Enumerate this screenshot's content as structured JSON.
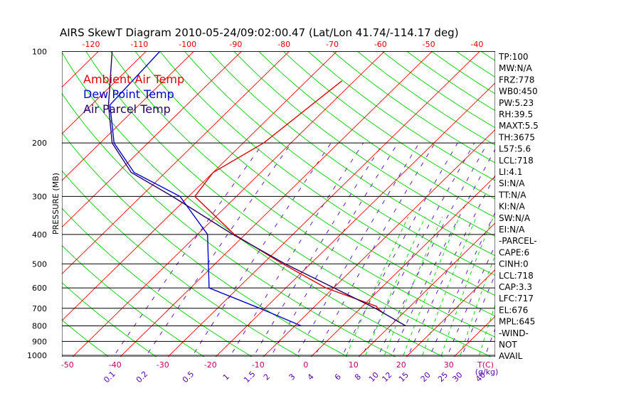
{
  "title": "AIRS SkewT Diagram 2010-05-24/09:02:00.47 (Lat/Lon 41.74/-114.17 deg)",
  "colors": {
    "ambient": "#dd0000",
    "dewpoint": "#0000cc",
    "parcel": "#220066",
    "isotherm": "#ff0000",
    "dry_adiabat": "#00cc00",
    "mixing_ratio": "#5500aa",
    "bottom_axis": "#c00060",
    "top_axis": "#dd0000"
  },
  "legend": [
    "Ambient Air Temp",
    "Dew Point Temp",
    "Air Parcel Temp"
  ],
  "indices": [
    "TP:100",
    "MW:N/A",
    "FRZ:778",
    "WB0:450",
    "PW:5.23",
    "RH:39.5",
    "MAXT:5.5",
    "TH:3675",
    "L57:5.6",
    "LCL:718",
    "LI:4.1",
    "SI:N/A",
    "TT:N/A",
    "KI:N/A",
    "SW:N/A",
    "EI:N/A",
    "-PARCEL-",
    "CAPE:6",
    "CINH:0",
    "LCL:718",
    "CAP:3.3",
    "LFC:717",
    "EL:676",
    "MPL:645",
    "-WIND-",
    "NOT",
    "AVAIL"
  ],
  "chart_data": {
    "type": "line",
    "title": "AIRS SkewT Diagram 2010-05-24/09:02:00.47 (Lat/Lon 41.74/-114.17 deg)",
    "ylabel": "PRESSURE (MB)",
    "xlabel": "T(C)",
    "y_scale": "log",
    "y_ticks": [
      100,
      200,
      300,
      400,
      500,
      600,
      700,
      800,
      900,
      1000
    ],
    "x_ticks_bottom": [
      -50,
      -40,
      -30,
      -20,
      -10,
      0,
      10,
      20,
      30
    ],
    "x_ticks_top": [
      -120,
      -110,
      -100,
      -90,
      -80,
      -70,
      -60,
      -50,
      -40
    ],
    "mixing_ratio_labels": [
      "0.1",
      "0.2",
      "0.5",
      "1",
      "1.5",
      "2",
      "3",
      "4",
      "6",
      "8",
      "10",
      "12",
      "15",
      "20",
      "25",
      "30",
      "40"
    ],
    "mixing_ratio_unit": "(g/kg)",
    "series": [
      {
        "name": "Ambient Air Temp",
        "points": [
          [
            125,
            -52.6
          ],
          [
            200,
            -55.7
          ],
          [
            250,
            -60
          ],
          [
            300,
            -58.7
          ],
          [
            400,
            -42.3
          ],
          [
            500,
            -25.8
          ],
          [
            600,
            -11.6
          ],
          [
            690,
            3
          ],
          [
            700,
            3.6
          ],
          [
            720,
            5.3
          ]
        ]
      },
      {
        "name": "Dew Point Temp",
        "points": [
          [
            100,
            -97.1
          ],
          [
            150,
            -96.1
          ],
          [
            200,
            -87.1
          ],
          [
            250,
            -76.6
          ],
          [
            300,
            -61.8
          ],
          [
            400,
            -47.9
          ],
          [
            600,
            -36.1
          ],
          [
            700,
            -21.1
          ],
          [
            800,
            -8.6
          ]
        ]
      },
      {
        "name": "Air Parcel Temp",
        "points": [
          [
            100,
            -107.1
          ],
          [
            150,
            -96.4
          ],
          [
            200,
            -87.5
          ],
          [
            250,
            -77.2
          ],
          [
            300,
            -63.4
          ],
          [
            400,
            -42.6
          ],
          [
            500,
            -25.3
          ],
          [
            600,
            -9.9
          ],
          [
            700,
            3.1
          ],
          [
            800,
            13.3
          ]
        ]
      }
    ]
  }
}
